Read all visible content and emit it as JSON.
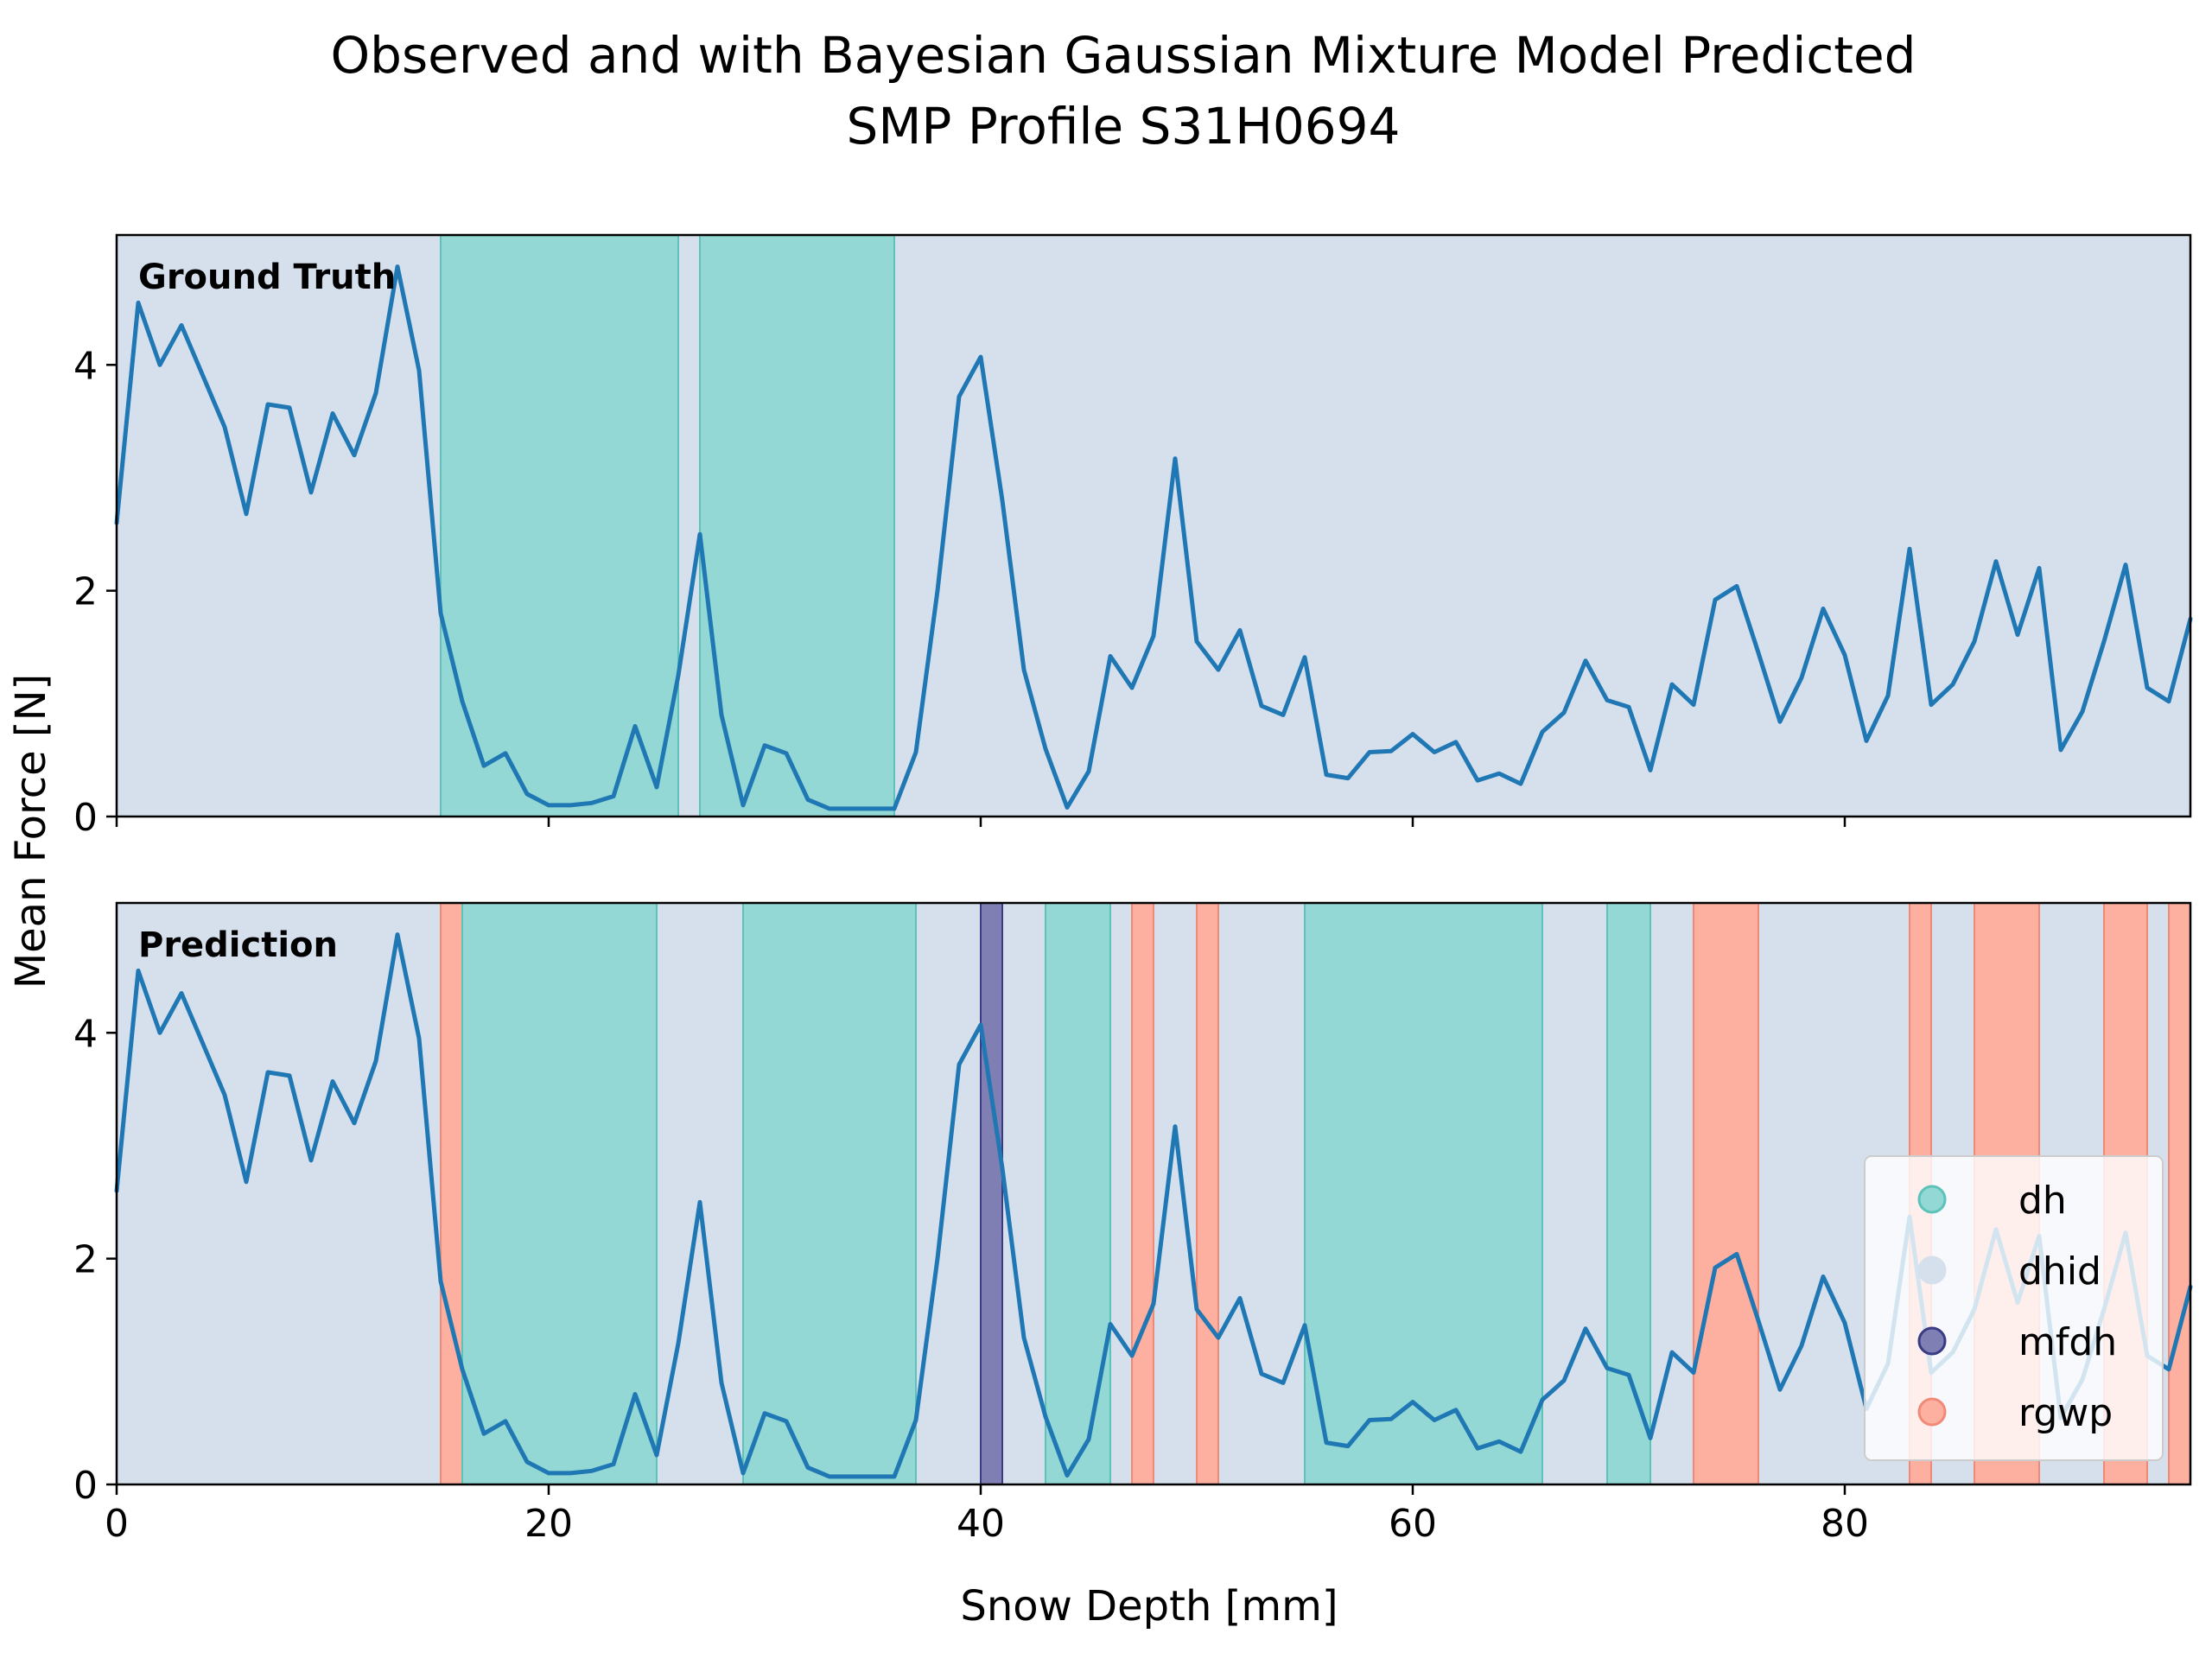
{
  "title_line1": "Observed and with Bayesian Gaussian Mixture Model Predicted",
  "title_line2": "SMP Profile S31H0694",
  "ylabel": "Mean Force [N]",
  "xlabel": "Snow Depth [mm]",
  "colors": {
    "line": "#1f77b4",
    "dh": "#93d8d4",
    "dh_edge": "#5cc2ba",
    "dhid": "#d6e0ed",
    "mfdh": "#7f7fb3",
    "mfdh_edge": "#3a3a85",
    "rgwp": "#fdafa0",
    "rgwp_edge": "#f08a78"
  },
  "legend": {
    "placement": "lower-right",
    "entries": [
      {
        "key": "dh",
        "label": "dh"
      },
      {
        "key": "dhid",
        "label": "dhid"
      },
      {
        "key": "mfdh",
        "label": "mfdh"
      },
      {
        "key": "rgwp",
        "label": "rgwp"
      }
    ]
  },
  "chart_data": [
    {
      "type": "line",
      "panel_label": "Ground Truth",
      "xlim": [
        0,
        96
      ],
      "ylim": [
        0,
        5.15
      ],
      "yticks": [
        0,
        2,
        4
      ],
      "xticks": [
        0,
        20,
        40,
        60,
        80
      ],
      "show_xtick_labels": false,
      "background_class": "dhid",
      "segments": [
        {
          "class": "dh",
          "x0": 15,
          "x1": 26
        },
        {
          "class": "dh",
          "x0": 27,
          "x1": 36
        }
      ]
    },
    {
      "type": "line",
      "panel_label": "Prediction",
      "xlim": [
        0,
        96
      ],
      "ylim": [
        0,
        5.15
      ],
      "yticks": [
        0,
        2,
        4
      ],
      "xticks": [
        0,
        20,
        40,
        60,
        80
      ],
      "show_xtick_labels": true,
      "background_class": "dhid",
      "segments": [
        {
          "class": "rgwp",
          "x0": 15,
          "x1": 16
        },
        {
          "class": "dh",
          "x0": 16,
          "x1": 25
        },
        {
          "class": "dh",
          "x0": 29,
          "x1": 37
        },
        {
          "class": "mfdh",
          "x0": 40,
          "x1": 41
        },
        {
          "class": "dh",
          "x0": 43,
          "x1": 46
        },
        {
          "class": "rgwp",
          "x0": 47,
          "x1": 48
        },
        {
          "class": "rgwp",
          "x0": 50,
          "x1": 51
        },
        {
          "class": "dh",
          "x0": 55,
          "x1": 66
        },
        {
          "class": "dh",
          "x0": 69,
          "x1": 71
        },
        {
          "class": "rgwp",
          "x0": 73,
          "x1": 76
        },
        {
          "class": "rgwp",
          "x0": 83,
          "x1": 84
        },
        {
          "class": "rgwp",
          "x0": 86,
          "x1": 89
        },
        {
          "class": "rgwp",
          "x0": 92,
          "x1": 94
        },
        {
          "class": "rgwp",
          "x0": 95,
          "x1": 96
        }
      ]
    }
  ],
  "series": {
    "name": "",
    "x": [
      0,
      1,
      2,
      3,
      4,
      5,
      6,
      7,
      8,
      9,
      10,
      11,
      12,
      13,
      14,
      15,
      16,
      17,
      18,
      19,
      20,
      21,
      22,
      23,
      24,
      25,
      26,
      27,
      28,
      29,
      30,
      31,
      32,
      33,
      34,
      35,
      36,
      37,
      38,
      39,
      40,
      41,
      42,
      43,
      44,
      45,
      46,
      47,
      48,
      49,
      50,
      51,
      52,
      53,
      54,
      55,
      56,
      57,
      58,
      59,
      60,
      61,
      62,
      63,
      64,
      65,
      66,
      67,
      68,
      69,
      70,
      71,
      72,
      73,
      74,
      75,
      76,
      77,
      78,
      79,
      80,
      81,
      82,
      83,
      84,
      85,
      86,
      87,
      88,
      89,
      90,
      91,
      92,
      93,
      94,
      95,
      96
    ],
    "y": [
      2.6,
      4.55,
      4.0,
      4.35,
      3.9,
      3.45,
      2.68,
      3.65,
      3.62,
      2.87,
      3.57,
      3.2,
      3.75,
      4.87,
      3.95,
      1.8,
      1.02,
      0.45,
      0.56,
      0.2,
      0.1,
      0.1,
      0.12,
      0.18,
      0.8,
      0.26,
      1.25,
      2.5,
      0.9,
      0.1,
      0.63,
      0.56,
      0.15,
      0.07,
      0.07,
      0.07,
      0.07,
      0.57,
      2.0,
      3.72,
      4.07,
      2.8,
      1.3,
      0.6,
      0.08,
      0.4,
      1.42,
      1.14,
      1.6,
      3.17,
      1.55,
      1.3,
      1.65,
      0.98,
      0.9,
      1.41,
      0.37,
      0.34,
      0.57,
      0.58,
      0.73,
      0.57,
      0.66,
      0.32,
      0.38,
      0.29,
      0.75,
      0.92,
      1.38,
      1.03,
      0.97,
      0.41,
      1.17,
      0.99,
      1.92,
      2.04,
      1.45,
      0.84,
      1.23,
      1.84,
      1.43,
      0.67,
      1.07,
      2.37,
      0.99,
      1.17,
      1.55,
      2.26,
      1.61,
      2.2,
      0.59,
      0.93,
      1.55,
      2.23,
      1.14,
      1.02,
      1.75
    ]
  }
}
